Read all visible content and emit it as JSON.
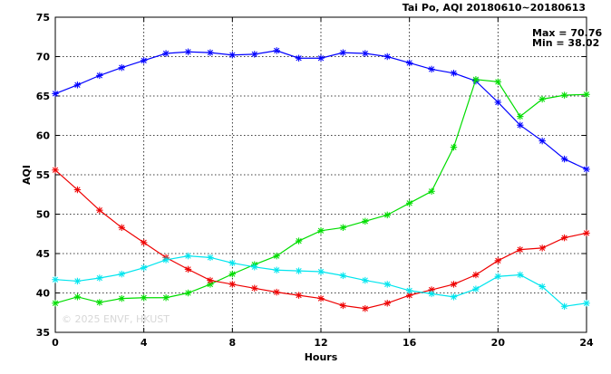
{
  "chart_data": {
    "type": "line",
    "title": "Tai Po, AQI 20180610~20180613",
    "xlabel": "Hours",
    "ylabel": "AQI",
    "xlim": [
      0,
      24
    ],
    "ylim": [
      35,
      75
    ],
    "x_ticks": [
      "0",
      "4",
      "8",
      "12",
      "16",
      "20",
      "24"
    ],
    "y_ticks": [
      "35",
      "40",
      "45",
      "50",
      "55",
      "60",
      "65",
      "70",
      "75"
    ],
    "grid": true,
    "max_label": "Max = 70.76",
    "min_label": "Min = 38.02",
    "watermark": "© 2025 ENVF, HKUST",
    "x": [
      0,
      1,
      2,
      3,
      4,
      5,
      6,
      7,
      8,
      9,
      10,
      11,
      12,
      13,
      14,
      15,
      16,
      17,
      18,
      19,
      20,
      21,
      22,
      23,
      24
    ],
    "series": [
      {
        "color": "#0000ff",
        "values": [
          65.3,
          66.4,
          67.6,
          68.6,
          69.5,
          70.4,
          70.6,
          70.5,
          70.2,
          70.3,
          70.76,
          69.8,
          69.8,
          70.5,
          70.4,
          70.0,
          69.2,
          68.4,
          67.9,
          66.9,
          64.2,
          61.3,
          59.3,
          57.0,
          55.7
        ]
      },
      {
        "color": "#00dd00",
        "values": [
          38.7,
          39.5,
          38.8,
          39.3,
          39.4,
          39.4,
          40.0,
          41.1,
          42.4,
          43.6,
          44.7,
          46.6,
          47.9,
          48.3,
          49.1,
          49.9,
          51.4,
          52.9,
          58.5,
          67.1,
          66.8,
          62.4,
          64.6,
          65.1,
          65.2
        ]
      },
      {
        "color": "#ee0000",
        "values": [
          55.6,
          53.1,
          50.5,
          48.3,
          46.4,
          44.5,
          43.0,
          41.6,
          41.1,
          40.6,
          40.1,
          39.7,
          39.3,
          38.4,
          38.02,
          38.7,
          39.7,
          40.4,
          41.1,
          42.3,
          44.1,
          45.5,
          45.7,
          47.0,
          47.6
        ]
      },
      {
        "color": "#00e5ee",
        "values": [
          41.7,
          41.5,
          41.9,
          42.4,
          43.2,
          44.2,
          44.7,
          44.5,
          43.8,
          43.3,
          42.9,
          42.8,
          42.7,
          42.2,
          41.6,
          41.1,
          40.3,
          39.9,
          39.5,
          40.5,
          42.1,
          42.3,
          40.8,
          38.3,
          38.7
        ]
      }
    ]
  }
}
